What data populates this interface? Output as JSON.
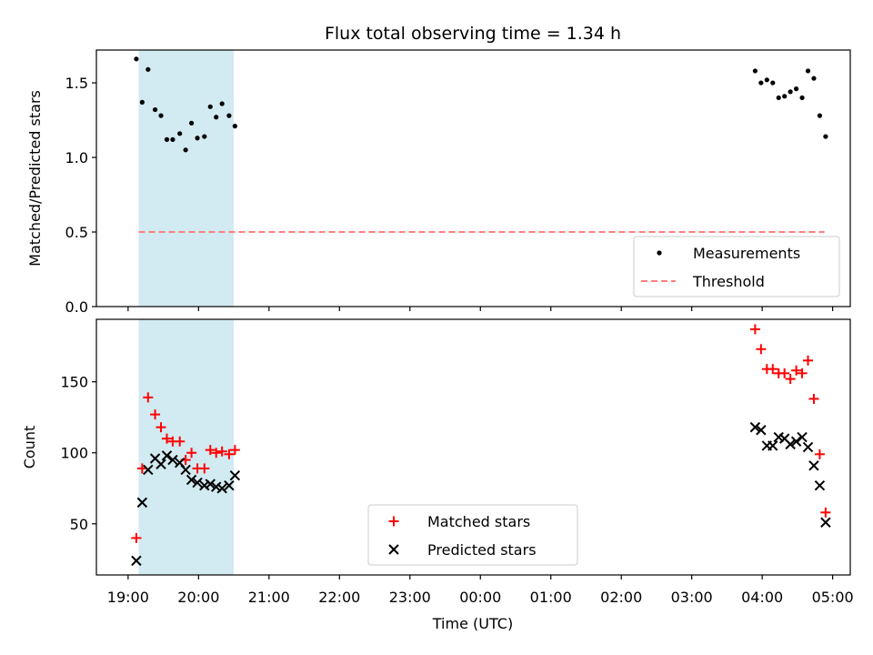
{
  "title": "Flux total observing time = 1.34 h",
  "colors": {
    "measurement": "#000000",
    "threshold": "#ff7f7f",
    "matched": "#ff0000",
    "predicted": "#000000",
    "window_fill": "#add8e6"
  },
  "chart_data": [
    {
      "type": "scatter",
      "panel": "top",
      "ylabel": "Matched/Predicted stars",
      "ylim": [
        0,
        1.72
      ],
      "yticks": [
        0.0,
        0.5,
        1.0,
        1.5
      ],
      "ytick_labels": [
        "0.0",
        "0.5",
        "1.0",
        "1.5"
      ],
      "observing_window": [
        "19:09",
        "20:30"
      ],
      "legend": {
        "position": "lower right",
        "entries": [
          "Measurements",
          "Threshold"
        ]
      },
      "threshold": {
        "y": 0.5,
        "x": [
          "19:09",
          "04:53"
        ]
      },
      "series": [
        {
          "name": "Measurements",
          "marker": "dot",
          "points": [
            [
              "19:07",
              1.66
            ],
            [
              "19:12",
              1.37
            ],
            [
              "19:17",
              1.59
            ],
            [
              "19:23",
              1.32
            ],
            [
              "19:28",
              1.28
            ],
            [
              "19:33",
              1.12
            ],
            [
              "19:38",
              1.12
            ],
            [
              "19:44",
              1.16
            ],
            [
              "19:49",
              1.05
            ],
            [
              "19:54",
              1.23
            ],
            [
              "19:59",
              1.13
            ],
            [
              "20:05",
              1.14
            ],
            [
              "20:10",
              1.34
            ],
            [
              "20:15",
              1.27
            ],
            [
              "20:20",
              1.36
            ],
            [
              "20:26",
              1.28
            ],
            [
              "20:31",
              1.21
            ],
            [
              "03:54",
              1.58
            ],
            [
              "03:59",
              1.5
            ],
            [
              "04:04",
              1.52
            ],
            [
              "04:09",
              1.5
            ],
            [
              "04:14",
              1.4
            ],
            [
              "04:19",
              1.41
            ],
            [
              "04:24",
              1.44
            ],
            [
              "04:29",
              1.46
            ],
            [
              "04:34",
              1.4
            ],
            [
              "04:39",
              1.58
            ],
            [
              "04:44",
              1.53
            ],
            [
              "04:49",
              1.28
            ],
            [
              "04:54",
              1.14
            ]
          ]
        }
      ]
    },
    {
      "type": "scatter",
      "panel": "bottom",
      "ylabel": "Count",
      "xlabel": "Time (UTC)",
      "ylim": [
        14,
        194
      ],
      "yticks": [
        50,
        100,
        150
      ],
      "ytick_labels": [
        "50",
        "100",
        "150"
      ],
      "xticks": [
        "19:00",
        "20:00",
        "21:00",
        "22:00",
        "23:00",
        "00:00",
        "01:00",
        "02:00",
        "03:00",
        "04:00",
        "05:00"
      ],
      "observing_window": [
        "19:09",
        "20:30"
      ],
      "legend": {
        "position": "lower center",
        "entries": [
          "Matched stars",
          "Predicted stars"
        ]
      },
      "series": [
        {
          "name": "Matched stars",
          "marker": "plus",
          "points": [
            [
              "19:07",
              40
            ],
            [
              "19:12",
              89
            ],
            [
              "19:17",
              139
            ],
            [
              "19:23",
              127
            ],
            [
              "19:28",
              118
            ],
            [
              "19:33",
              110
            ],
            [
              "19:38",
              108
            ],
            [
              "19:44",
              108
            ],
            [
              "19:49",
              95
            ],
            [
              "19:54",
              100
            ],
            [
              "19:59",
              89
            ],
            [
              "20:05",
              89
            ],
            [
              "20:10",
              102
            ],
            [
              "20:15",
              100
            ],
            [
              "20:20",
              101
            ],
            [
              "20:26",
              99
            ],
            [
              "20:31",
              102
            ],
            [
              "03:54",
              187
            ],
            [
              "03:59",
              173
            ],
            [
              "04:04",
              159
            ],
            [
              "04:09",
              159
            ],
            [
              "04:14",
              156
            ],
            [
              "04:19",
              156
            ],
            [
              "04:24",
              152
            ],
            [
              "04:29",
              158
            ],
            [
              "04:34",
              156
            ],
            [
              "04:39",
              165
            ],
            [
              "04:44",
              138
            ],
            [
              "04:49",
              99
            ],
            [
              "04:54",
              58
            ]
          ]
        },
        {
          "name": "Predicted stars",
          "marker": "x",
          "points": [
            [
              "19:07",
              24
            ],
            [
              "19:12",
              65
            ],
            [
              "19:17",
              88
            ],
            [
              "19:23",
              96
            ],
            [
              "19:28",
              92
            ],
            [
              "19:33",
              98
            ],
            [
              "19:38",
              95
            ],
            [
              "19:44",
              93
            ],
            [
              "19:49",
              88
            ],
            [
              "19:54",
              81
            ],
            [
              "19:59",
              79
            ],
            [
              "20:05",
              77
            ],
            [
              "20:10",
              78
            ],
            [
              "20:15",
              76
            ],
            [
              "20:20",
              75
            ],
            [
              "20:26",
              77
            ],
            [
              "20:31",
              84
            ],
            [
              "03:54",
              118
            ],
            [
              "03:59",
              116
            ],
            [
              "04:04",
              105
            ],
            [
              "04:09",
              105
            ],
            [
              "04:14",
              111
            ],
            [
              "04:19",
              110
            ],
            [
              "04:24",
              106
            ],
            [
              "04:29",
              108
            ],
            [
              "04:34",
              111
            ],
            [
              "04:39",
              104
            ],
            [
              "04:44",
              91
            ],
            [
              "04:49",
              77
            ],
            [
              "04:54",
              51
            ]
          ]
        }
      ]
    }
  ]
}
